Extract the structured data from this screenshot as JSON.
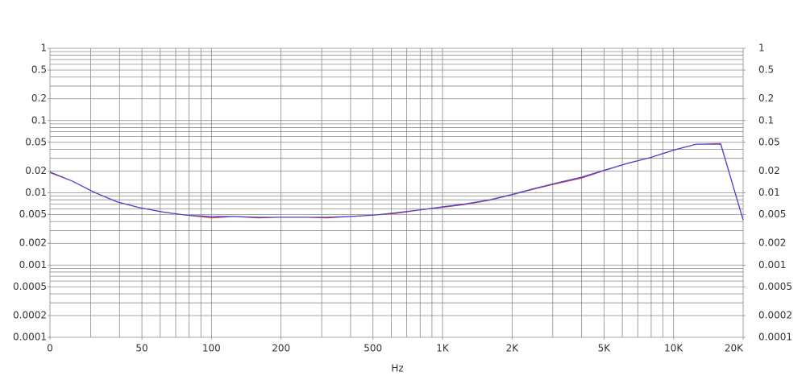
{
  "chart_data": {
    "type": "line",
    "x_label": "Hz",
    "xlog": true,
    "ylog": true,
    "xlim": [
      20,
      20000
    ],
    "ylim": [
      0.0001,
      1
    ],
    "xticks": [
      {
        "value": 20,
        "label": "0"
      },
      50,
      100,
      200,
      500,
      {
        "value": 1000,
        "label": "1K"
      },
      {
        "value": 2000,
        "label": "2K"
      },
      {
        "value": 5000,
        "label": "5K"
      },
      {
        "value": 10000,
        "label": "10K"
      },
      {
        "value": 20000,
        "label": "20K"
      }
    ],
    "yticks": [
      1,
      0.5,
      0.2,
      0.1,
      0.05,
      0.02,
      0.01,
      0.005,
      0.002,
      0.001,
      0.0005,
      0.0002,
      0.0001
    ],
    "x_grid": [
      20,
      30,
      40,
      50,
      60,
      70,
      80,
      90,
      100,
      200,
      300,
      400,
      500,
      600,
      700,
      800,
      900,
      1000,
      2000,
      3000,
      4000,
      5000,
      6000,
      7000,
      8000,
      9000,
      10000,
      20000
    ],
    "y_grid": [
      0.0001,
      0.0002,
      0.0003,
      0.0004,
      0.0005,
      0.0006,
      0.0007,
      0.0008,
      0.0009,
      0.001,
      0.002,
      0.003,
      0.004,
      0.005,
      0.006,
      0.007,
      0.008,
      0.009,
      0.01,
      0.02,
      0.03,
      0.04,
      0.05,
      0.06,
      0.07,
      0.08,
      0.09,
      0.1,
      0.2,
      0.3,
      0.4,
      0.5,
      0.6,
      0.7,
      0.8,
      0.9,
      1
    ],
    "x": [
      20,
      25,
      31,
      39,
      49,
      62,
      78,
      100,
      125,
      160,
      200,
      250,
      315,
      400,
      500,
      630,
      800,
      1000,
      1250,
      1600,
      2000,
      2500,
      3150,
      4000,
      5000,
      6300,
      8000,
      10000,
      12500,
      16000,
      20000
    ],
    "series": [
      {
        "color": "#e0303a",
        "values": [
          0.019,
          0.0145,
          0.0102,
          0.0075,
          0.0062,
          0.0054,
          0.0049,
          0.0045,
          0.0047,
          0.0045,
          0.0046,
          0.0046,
          0.0045,
          0.0047,
          0.0049,
          0.0052,
          0.0058,
          0.0063,
          0.0069,
          0.0079,
          0.0094,
          0.0113,
          0.0135,
          0.016,
          0.0203,
          0.0255,
          0.031,
          0.039,
          0.047,
          0.048,
          0.0042
        ]
      },
      {
        "color": "#3a4ee0",
        "values": [
          0.0195,
          0.0145,
          0.0102,
          0.0075,
          0.0062,
          0.0054,
          0.0049,
          0.0047,
          0.0047,
          0.0046,
          0.0046,
          0.0046,
          0.0046,
          0.0047,
          0.0049,
          0.0053,
          0.0058,
          0.0064,
          0.007,
          0.008,
          0.0095,
          0.0115,
          0.0138,
          0.0165,
          0.0205,
          0.0255,
          0.031,
          0.039,
          0.047,
          0.047,
          0.0042
        ]
      }
    ]
  }
}
